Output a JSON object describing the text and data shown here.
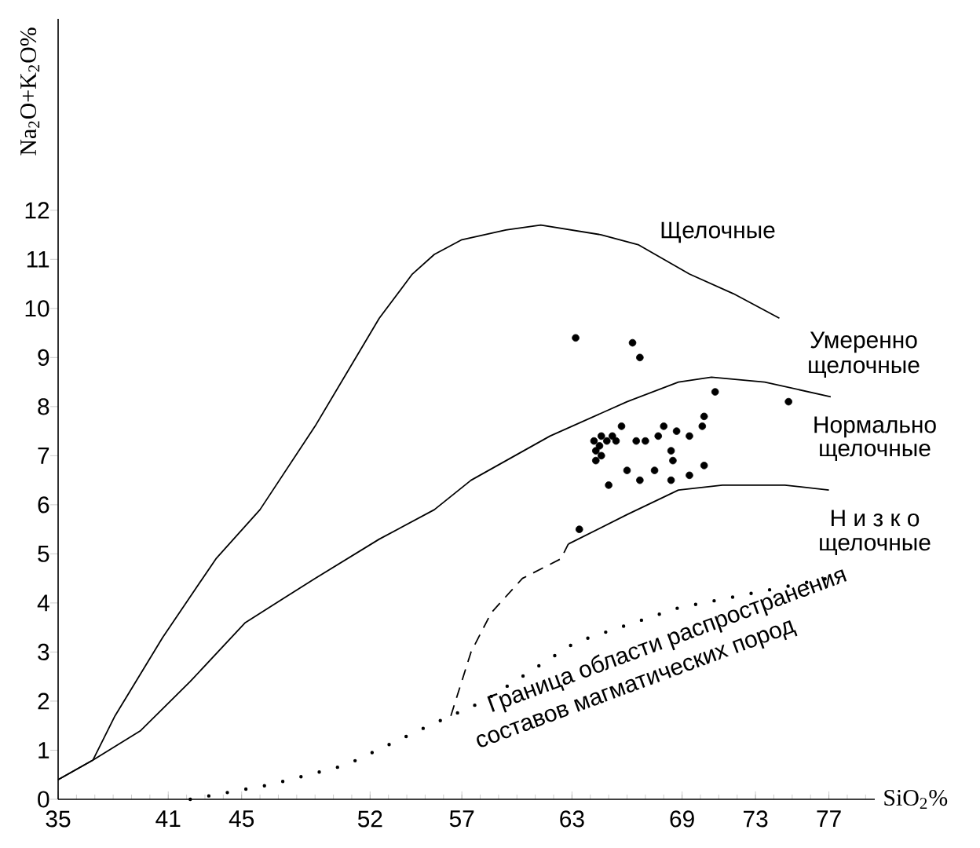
{
  "chart_data": {
    "type": "scatter",
    "xlabel": "SiO$_{2}$%",
    "ylabel": "Na$_{2}$O+K$_{2}$O%",
    "xlim": [
      35,
      79.5
    ],
    "ylim": [
      0,
      15.9
    ],
    "xticks": [
      35,
      41,
      45,
      52,
      57,
      63,
      69,
      73,
      77
    ],
    "yticks": [
      0,
      1,
      2,
      3,
      4,
      5,
      6,
      7,
      8,
      9,
      10,
      11,
      12
    ],
    "series": [
      {
        "type": "line",
        "color": "#000000",
        "marker": "none",
        "line_style": "solid",
        "x": [
          35,
          36.9,
          38.1,
          40.7,
          43.6,
          46,
          49,
          52.5,
          54.3,
          55.5,
          57,
          59.4,
          61.3,
          64.6,
          66.6,
          69.4,
          71.8,
          74.3
        ],
        "values": [
          0.4,
          0.8,
          1.7,
          3.3,
          4.9,
          5.9,
          7.6,
          9.8,
          10.7,
          11.1,
          11.4,
          11.6,
          11.7,
          11.5,
          11.3,
          10.7,
          10.3,
          9.8
        ]
      },
      {
        "type": "line",
        "color": "#000000",
        "marker": "none",
        "line_style": "solid",
        "x": [
          35,
          36.9,
          39.5,
          42.2,
          45.2,
          49,
          52.5,
          55.5,
          57.5,
          61.8,
          66,
          68.8,
          70.6,
          73.5,
          77.1
        ],
        "values": [
          0.4,
          0.8,
          1.4,
          2.4,
          3.6,
          4.5,
          5.3,
          5.9,
          6.5,
          7.4,
          8.1,
          8.5,
          8.6,
          8.5,
          8.2
        ]
      },
      {
        "type": "line",
        "color": "#000000",
        "marker": "none",
        "line_style": "solid",
        "x": [
          62.8,
          66,
          68.8,
          71.2,
          74.6,
          77
        ],
        "values": [
          5.2,
          5.8,
          6.3,
          6.4,
          6.4,
          6.3
        ]
      },
      {
        "type": "line",
        "color": "#000000",
        "marker": "none",
        "line_style": "dashed",
        "x": [
          56.4,
          57.5,
          58.6,
          60.3,
          62.4,
          62.8
        ],
        "values": [
          1.7,
          3.0,
          3.8,
          4.5,
          4.9,
          5.2
        ]
      },
      {
        "type": "line",
        "color": "#000000",
        "marker": "none",
        "line_style": "dotted",
        "x": [
          42.2,
          46.6,
          50.7,
          55.2,
          58.2,
          63.2,
          68.8,
          76.9
        ],
        "values": [
          0,
          0.3,
          0.7,
          1.5,
          2.0,
          3.2,
          3.9,
          4.5
        ]
      },
      {
        "color": "#000000",
        "marker": "circle",
        "x": [
          63.2,
          66.3,
          66.7,
          70.8,
          74.8,
          70.2,
          70.1,
          68.0,
          68.7,
          69.4,
          67.7,
          67.0,
          66.5,
          65.7,
          65.2,
          65.4,
          64.6,
          64.9,
          64.2,
          64.5,
          64.3,
          64.6,
          64.3,
          68.4,
          68.5,
          66.0,
          67.5,
          70.2,
          69.4,
          66.7,
          68.4,
          65.0,
          63.4
        ],
        "values": [
          9.4,
          9.3,
          9.0,
          8.3,
          8.1,
          7.8,
          7.6,
          7.6,
          7.5,
          7.4,
          7.4,
          7.3,
          7.3,
          7.6,
          7.4,
          7.3,
          7.4,
          7.3,
          7.3,
          7.2,
          7.1,
          7.0,
          6.9,
          7.1,
          6.9,
          6.7,
          6.7,
          6.8,
          6.6,
          6.5,
          6.5,
          6.4,
          5.5
        ]
      }
    ],
    "annotations": [
      "Щелочные",
      "Умеренно",
      "щелочные",
      "Нормально",
      "щелочные",
      "Н и з к о",
      "щелочные",
      "Граница области распространения",
      "составов магматических пород"
    ]
  }
}
